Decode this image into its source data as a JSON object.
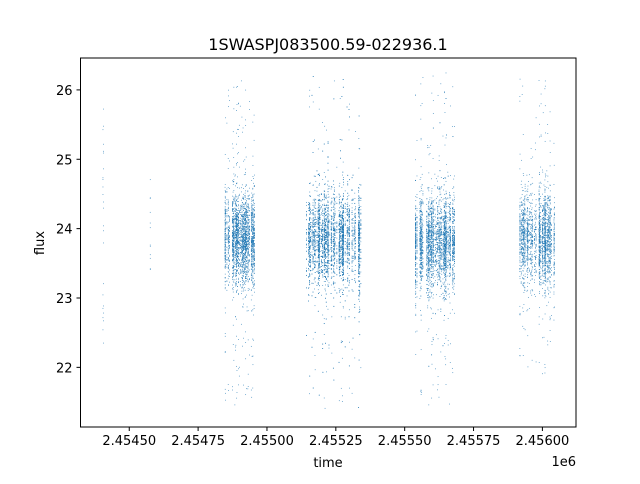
{
  "chart_data": {
    "type": "scatter",
    "title": "1SWASPJ083500.59-022936.1",
    "xlabel": "time",
    "ylabel": "flux",
    "x_offset_label": "1e6",
    "xlim": [
      2454323,
      2456122
    ],
    "ylim": [
      21.14,
      26.46
    ],
    "xticks": [
      2454500,
      2454750,
      2455000,
      2455250,
      2455500,
      2455750,
      2456000
    ],
    "xtick_labels": [
      "2.45450",
      "2.45475",
      "2.45500",
      "2.45525",
      "2.45550",
      "2.45575",
      "2.45600"
    ],
    "yticks": [
      22,
      23,
      24,
      25,
      26
    ],
    "ytick_labels": [
      "22",
      "23",
      "24",
      "25",
      "26"
    ],
    "grid": false,
    "legend": "none",
    "marker_color": "#1f77b4",
    "observing_seasons": [
      {
        "time_range": [
          2454403,
          2454408
        ],
        "flux_median": 24.0,
        "flux_range": [
          21.9,
          25.95
        ],
        "approx_points": 25
      },
      {
        "time_range": [
          2454573,
          2454578
        ],
        "flux_median": 24.2,
        "flux_range": [
          23.2,
          24.9
        ],
        "approx_points": 12
      },
      {
        "time_range": [
          2454845,
          2454956
        ],
        "flux_median": 23.85,
        "flux_range": [
          21.45,
          26.2
        ],
        "approx_points": 2500
      },
      {
        "time_range": [
          2455143,
          2455342
        ],
        "flux_median": 23.85,
        "flux_range": [
          21.4,
          26.2
        ],
        "approx_points": 4000
      },
      {
        "time_range": [
          2455538,
          2455684
        ],
        "flux_median": 23.8,
        "flux_range": [
          21.45,
          26.25
        ],
        "approx_points": 3000
      },
      {
        "time_range": [
          2455915,
          2456045
        ],
        "flux_median": 23.85,
        "flux_range": [
          21.9,
          26.2
        ],
        "approx_points": 2200
      }
    ]
  }
}
